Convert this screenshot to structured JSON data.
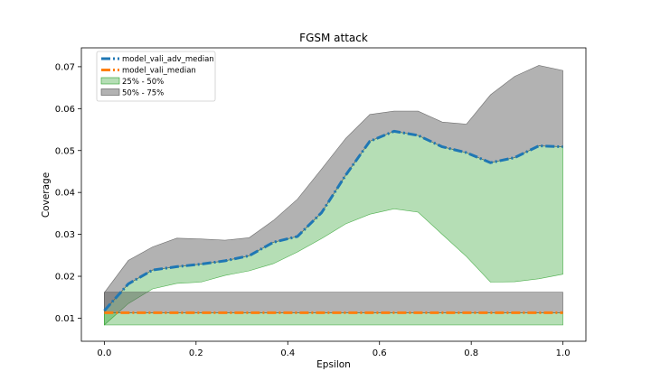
{
  "chart_data": {
    "type": "line",
    "title": "FGSM attack",
    "xlabel": "Epsilon",
    "ylabel": "Coverage",
    "xlim": [
      -0.05,
      1.05
    ],
    "ylim": [
      0.0045,
      0.0745
    ],
    "xticks": [
      0.0,
      0.2,
      0.4,
      0.6,
      0.8,
      1.0
    ],
    "xtick_labels": [
      "0.0",
      "0.2",
      "0.4",
      "0.6",
      "0.8",
      "1.0"
    ],
    "yticks": [
      0.01,
      0.02,
      0.03,
      0.04,
      0.05,
      0.06,
      0.07
    ],
    "ytick_labels": [
      "0.01",
      "0.02",
      "0.03",
      "0.04",
      "0.05",
      "0.06",
      "0.07"
    ],
    "legend_position": "top-left",
    "grid": false,
    "x": [
      0.0,
      0.0526,
      0.1053,
      0.1579,
      0.2105,
      0.2632,
      0.3158,
      0.3684,
      0.4211,
      0.4737,
      0.5263,
      0.5789,
      0.6316,
      0.6842,
      0.7368,
      0.7895,
      0.8421,
      0.8947,
      0.9474,
      1.0
    ],
    "series": [
      {
        "name": "model_vali_adv_median",
        "color": "#1f77b4",
        "style": "dashdot",
        "values": [
          0.0118,
          0.0182,
          0.0215,
          0.0223,
          0.0229,
          0.0237,
          0.0249,
          0.0281,
          0.0295,
          0.0352,
          0.0441,
          0.0522,
          0.0546,
          0.0536,
          0.0509,
          0.0495,
          0.0471,
          0.0483,
          0.0511,
          0.0509
        ]
      },
      {
        "name": "model_vali_median",
        "color": "#ff7f0e",
        "style": "dashdot",
        "values": [
          0.0113,
          0.0113,
          0.0113,
          0.0113,
          0.0113,
          0.0113,
          0.0113,
          0.0113,
          0.0113,
          0.0113,
          0.0113,
          0.0113,
          0.0113,
          0.0113,
          0.0113,
          0.0113,
          0.0113,
          0.0113,
          0.0113,
          0.0113
        ]
      }
    ],
    "bands": [
      {
        "name": "25% - 50%",
        "color": "#2ca02c",
        "opacity": 0.35,
        "adv_lower": [
          0.0084,
          0.0135,
          0.017,
          0.0183,
          0.0186,
          0.0202,
          0.0213,
          0.023,
          0.0258,
          0.029,
          0.0325,
          0.0348,
          0.0361,
          0.0353,
          0.03,
          0.0247,
          0.0186,
          0.0187,
          0.0194,
          0.0205
        ],
        "adv_upper": [
          0.0118,
          0.0182,
          0.0215,
          0.0223,
          0.0229,
          0.0237,
          0.0249,
          0.0281,
          0.0295,
          0.0352,
          0.0441,
          0.0522,
          0.0546,
          0.0536,
          0.0509,
          0.0495,
          0.0471,
          0.0483,
          0.0511,
          0.0509
        ],
        "clean_lower": 0.0084,
        "clean_upper": 0.0113
      },
      {
        "name": "50% - 75%",
        "color": "#555555",
        "opacity": 0.45,
        "adv_lower": [
          0.0118,
          0.0182,
          0.0215,
          0.0223,
          0.0229,
          0.0237,
          0.0249,
          0.0281,
          0.0295,
          0.0352,
          0.0441,
          0.0522,
          0.0546,
          0.0536,
          0.0509,
          0.0495,
          0.0471,
          0.0483,
          0.0511,
          0.0509
        ],
        "adv_upper": [
          0.0161,
          0.0238,
          0.027,
          0.0291,
          0.0289,
          0.0286,
          0.0292,
          0.0333,
          0.0384,
          0.0456,
          0.0529,
          0.0586,
          0.0594,
          0.0594,
          0.0568,
          0.0563,
          0.0633,
          0.0677,
          0.0703,
          0.0691
        ],
        "clean_lower": 0.0113,
        "clean_upper": 0.0162
      }
    ]
  }
}
